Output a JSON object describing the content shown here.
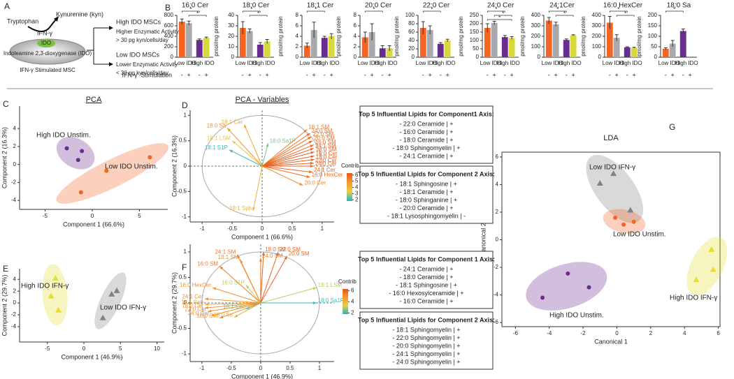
{
  "panel_letters": [
    "A",
    "B",
    "C",
    "D",
    "E",
    "F",
    "G"
  ],
  "diagram": {
    "substrate": "Tryptophan",
    "product": "Kynurenine (kyn)",
    "stimulus": "IFN-γ",
    "enzyme": "IDO",
    "enzyme_full": "Indoleamine 2,3-dioxygenase (IDO)",
    "cell": "IFN-γ Stimulated MSC",
    "groups": [
      {
        "name": "High IDO MSCs",
        "activity": "Higher Enzymatic Activity",
        "threshold": "> 30 pg kyn/cells/day"
      },
      {
        "name": "Low IDO MSCs",
        "activity": "Lower Enzymatic Activity",
        "threshold": "< 30 pg kyn/cells/day"
      }
    ]
  },
  "bar_axis": {
    "groups": [
      "Low IDO",
      "High IDO"
    ],
    "stimulation_label": "IFN-γ  Stimulation",
    "signs": [
      "-",
      "+",
      "-",
      "+"
    ]
  },
  "chart_data": [
    {
      "type": "bar",
      "title": "16:0 Cer",
      "values": [
        680,
        650,
        330,
        370
      ],
      "errors": [
        50,
        40,
        20,
        15
      ],
      "colors": [
        "#f26522",
        "#a7a9ac",
        "#6a2c91",
        "#d7d93a"
      ],
      "ylim": [
        0,
        800
      ],
      "yticks": [
        0,
        200,
        400,
        600,
        800
      ],
      "significance": [
        "*",
        "*"
      ]
    },
    {
      "type": "bar",
      "title": "18:0 Cer",
      "ylabel": "pmol/mg protein",
      "values": [
        28,
        25,
        12,
        15
      ],
      "errors": [
        6,
        2,
        2,
        2
      ],
      "colors": [
        "#f26522",
        "#a7a9ac",
        "#6a2c91",
        "#d7d93a"
      ],
      "ylim": [
        0,
        40
      ],
      "yticks": [
        0,
        10,
        20,
        30,
        40
      ],
      "significance": [
        "*",
        "*"
      ]
    },
    {
      "type": "bar",
      "title": "18:1 Cer",
      "ylabel": "pmol/mg protein",
      "values": [
        2.2,
        5.2,
        3.7,
        4.0
      ],
      "errors": [
        0.5,
        1.5,
        0.3,
        0.5
      ],
      "colors": [
        "#f26522",
        "#a7a9ac",
        "#6a2c91",
        "#d7d93a"
      ],
      "ylim": [
        0,
        8
      ],
      "yticks": [
        0,
        2,
        4,
        6,
        8
      ],
      "significance": [
        "*"
      ]
    },
    {
      "type": "bar",
      "title": "20:0 Cer",
      "ylabel": "pmol/mg protein",
      "values": [
        3.8,
        4.8,
        1.7,
        1.7
      ],
      "errors": [
        1.0,
        1.6,
        0.5,
        0.5
      ],
      "colors": [
        "#f26522",
        "#a7a9ac",
        "#6a2c91",
        "#d7d93a"
      ],
      "ylim": [
        0,
        8
      ],
      "yticks": [
        0,
        2,
        4,
        6,
        8
      ],
      "significance": [
        "*"
      ]
    },
    {
      "type": "bar",
      "title": "22:0 Cer",
      "ylabel": "pmol/mg protein",
      "values": [
        70,
        65,
        32,
        40
      ],
      "errors": [
        15,
        10,
        3,
        3
      ],
      "colors": [
        "#f26522",
        "#a7a9ac",
        "#6a2c91",
        "#d7d93a"
      ],
      "ylim": [
        0,
        100
      ],
      "yticks": [
        0,
        20,
        40,
        60,
        80,
        100
      ],
      "significance": [
        "*"
      ]
    },
    {
      "type": "bar",
      "title": "24:0 Cer",
      "ylabel": "pmol/mg protein",
      "values": [
        175,
        205,
        120,
        115
      ],
      "errors": [
        25,
        10,
        10,
        8
      ],
      "colors": [
        "#f26522",
        "#a7a9ac",
        "#6a2c91",
        "#d7d93a"
      ],
      "ylim": [
        0,
        250
      ],
      "yticks": [
        0,
        50,
        100,
        150,
        200,
        250
      ],
      "significance": [
        "*",
        "*",
        "*"
      ]
    },
    {
      "type": "bar",
      "title": "24:1Cer",
      "ylabel": "pmol/mg protein",
      "values": [
        350,
        315,
        165,
        210
      ],
      "errors": [
        30,
        20,
        10,
        5
      ],
      "colors": [
        "#f26522",
        "#a7a9ac",
        "#6a2c91",
        "#d7d93a"
      ],
      "ylim": [
        0,
        400
      ],
      "yticks": [
        0,
        100,
        200,
        300,
        400
      ],
      "significance": [
        "*",
        "*"
      ]
    },
    {
      "type": "bar",
      "title": "16:0 HexCer",
      "ylabel": "pmol/mg protein",
      "values": [
        330,
        185,
        95,
        90
      ],
      "errors": [
        60,
        30,
        5,
        5
      ],
      "colors": [
        "#f26522",
        "#a7a9ac",
        "#6a2c91",
        "#d7d93a"
      ],
      "ylim": [
        0,
        400
      ],
      "yticks": [
        0,
        100,
        200,
        300,
        400
      ],
      "significance": [
        "*",
        "*"
      ]
    },
    {
      "type": "bar",
      "title": "18:0 Sa",
      "ylabel": "pmol/mg protein",
      "values": [
        40,
        65,
        125,
        null
      ],
      "errors": [
        5,
        15,
        10,
        null
      ],
      "colors": [
        "#f26522",
        "#a7a9ac",
        "#6a2c91",
        "#d7d93a"
      ],
      "ylim": [
        0,
        200
      ],
      "yticks": [
        0,
        50,
        100,
        150,
        200
      ],
      "significance": [
        "*"
      ]
    },
    {
      "type": "scatter",
      "title": "PCA",
      "xlabel": "Component 1 (66.6%)",
      "ylabel": "Component 2 (16.3%)",
      "xlim": [
        -7.7,
        8
      ],
      "ylim": [
        -5,
        6.5
      ],
      "xticks": [
        -5,
        0,
        5
      ],
      "yticks": [
        -4,
        -2,
        0,
        2,
        4
      ],
      "series": [
        {
          "name": "High IDO Unstim.",
          "color": "#6a2c91",
          "marker": "circle",
          "x": [
            -2.7,
            -1.1,
            -1.5
          ],
          "y": [
            1.8,
            1.5,
            0.5
          ]
        },
        {
          "name": "Low IDO Unstim.",
          "color": "#f26522",
          "marker": "circle",
          "x": [
            6.1,
            1.5,
            -1.2
          ],
          "y": [
            0.8,
            -0.7,
            -3.1
          ]
        }
      ]
    },
    {
      "type": "biplot",
      "title": "PCA - Variables",
      "xlabel": "Component 1 (66.6%)",
      "ylabel": "Component 2 (16.3%)",
      "xlim": [
        -1.2,
        1.2
      ],
      "ylim": [
        -1.1,
        1.1
      ],
      "xticks": [
        -1,
        -0.5,
        0,
        0.5,
        1
      ],
      "yticks": [
        -1,
        -0.5,
        0,
        0.5,
        1
      ],
      "variables": [
        "18:1 Cer",
        "18:0 Sa",
        "18:1 LSM",
        "18:1 S1P",
        "18:0 Sa1P",
        "18:1 Sph",
        "18:1 SM",
        "24:0 SM",
        "22:0 SM",
        "20:0 SM",
        "16:0 SM",
        "24:1 SM",
        "18:0 SM",
        "16:0 Cer",
        "18:0 Cer",
        "22:0 Cer",
        "24:0 Cer",
        "24:1 Cer",
        "16:0 HexCer",
        "20:0 Cer"
      ],
      "x": [
        -0.3,
        -0.58,
        -0.5,
        -0.55,
        0.1,
        -0.15,
        0.75,
        0.8,
        0.82,
        0.84,
        0.86,
        0.86,
        0.87,
        0.87,
        0.87,
        0.86,
        0.86,
        0.84,
        0.8,
        0.68
      ],
      "y": [
        0.82,
        0.75,
        0.5,
        0.32,
        0.45,
        -0.88,
        0.72,
        0.65,
        0.58,
        0.5,
        0.42,
        0.35,
        0.28,
        0.2,
        0.13,
        0.06,
        0.0,
        -0.12,
        -0.22,
        -0.38
      ],
      "contrib": [
        4.5,
        5,
        3.5,
        2,
        2.5,
        4,
        5.5,
        5.8,
        5.8,
        5.9,
        6,
        6,
        6,
        6,
        6,
        6,
        6,
        5.9,
        5.7,
        5.2
      ],
      "colorbar": {
        "label": "Contrib",
        "lim": [
          1.8,
          6.3
        ],
        "ticks": [
          2,
          3,
          4,
          5,
          6
        ],
        "colors": [
          "#1fb5c9",
          "#e6d043",
          "#f39a2d",
          "#e8561f"
        ]
      }
    },
    {
      "type": "scatter",
      "xlabel": "Component 1 (46.9%)",
      "ylabel": "Component 2 (29.7%)",
      "xlim": [
        -8.8,
        11
      ],
      "ylim": [
        -6.6,
        5.8
      ],
      "xticks": [
        -5,
        0,
        5,
        10
      ],
      "yticks": [
        -4,
        -2,
        0,
        2,
        4
      ],
      "series": [
        {
          "name": "High IDO IFN-γ",
          "color": "#e6df2a",
          "marker": "triangle",
          "x": [
            -3.9,
            -4.5,
            -3.5
          ],
          "y": [
            4.2,
            1.2,
            -1.2
          ]
        },
        {
          "name": "Low IDO IFN-γ",
          "color": "#808285",
          "marker": "triangle",
          "x": [
            4.5,
            3.8,
            2.6
          ],
          "y": [
            2.1,
            1.5,
            -2.5
          ]
        }
      ]
    },
    {
      "type": "biplot",
      "xlabel": "Component 1 (46.9%)",
      "ylabel": "Component 2 (29.7%)",
      "xlim": [
        -1.2,
        1.25
      ],
      "ylim": [
        -1.15,
        1.15
      ],
      "xticks": [
        -1,
        -0.5,
        0,
        0.5,
        1
      ],
      "yticks": [
        -1,
        -0.5,
        0,
        0.5,
        1
      ],
      "variables": [
        "18:0 SM",
        "22:0 SM",
        "20:0 SM",
        "24:1 SM",
        "24:0 SM",
        "18:1 SM",
        "16:0 SM",
        "16:0 HexCer",
        "16:0 S1P",
        "18:1 LSM",
        "24:1 Cer",
        "18:1 Sph",
        "18:0 Cer",
        "22:0 Cer",
        "24:0 Cer",
        "16:0 Cer",
        "18:0 Sa",
        "18:1 Cer",
        "18:0 Sa1P"
      ],
      "x": [
        0.05,
        0.3,
        0.45,
        -0.4,
        0.0,
        -0.35,
        -0.7,
        -0.82,
        -0.25,
        0.95,
        -0.95,
        -0.95,
        -0.95,
        -0.9,
        -0.85,
        -0.7,
        -0.45,
        -0.25,
        0.95
      ],
      "y": [
        1.0,
        1.0,
        0.92,
        0.95,
        0.88,
        0.85,
        0.72,
        0.3,
        0.35,
        0.3,
        0.08,
        -0.03,
        -0.1,
        -0.17,
        -0.25,
        -0.3,
        -0.28,
        -0.12,
        0.0
      ],
      "contrib": [
        6,
        6,
        6,
        5.5,
        5.5,
        5,
        5.5,
        5,
        3,
        3,
        5,
        4.5,
        5,
        5,
        5,
        5,
        4.5,
        2.5,
        2
      ],
      "colorbar": {
        "label": "Contrib",
        "lim": [
          1.8,
          6.3
        ],
        "ticks": [
          2,
          4,
          6
        ],
        "colors": [
          "#1fb5c9",
          "#e6d043",
          "#f39a2d",
          "#e8561f"
        ]
      }
    },
    {
      "type": "scatter",
      "title": "LDA",
      "xlabel": "Canonical 1",
      "ylabel": "Canonical 2",
      "xlim": [
        -6.8,
        6.1
      ],
      "ylim": [
        -6.3,
        6.35
      ],
      "xticks": [
        -6,
        -4,
        -2,
        0,
        2,
        4,
        6
      ],
      "yticks": [
        -6,
        -4,
        -2,
        0,
        2,
        4,
        6
      ],
      "series": [
        {
          "name": "Low IDO IFN-γ",
          "color": "#808285",
          "marker": "triangle",
          "x": [
            -1.0,
            -0.2,
            0.8
          ],
          "y": [
            4.1,
            4.8,
            2.15
          ]
        },
        {
          "name": "Low IDO Unstim.",
          "color": "#f26522",
          "marker": "circle",
          "x": [
            -0.1,
            1.0,
            0.4
          ],
          "y": [
            1.6,
            1.3,
            1.1
          ]
        },
        {
          "name": "High IDO Unstim.",
          "color": "#6a2c91",
          "marker": "circle",
          "x": [
            -4.4,
            -2.9,
            -1.65
          ],
          "y": [
            -4.2,
            -2.45,
            -3.45
          ]
        },
        {
          "name": "High IDO IFN-γ",
          "color": "#e6df2a",
          "marker": "triangle",
          "x": [
            5.6,
            5.7,
            4.7
          ],
          "y": [
            -0.7,
            -2.15,
            -2.9
          ]
        }
      ]
    }
  ],
  "boxes": [
    {
      "title": "Top 5 Influential Lipids for Component1 Axis:",
      "items": [
        "- 22:0 Ceramide | +",
        "- 16:0 Ceramide | +",
        "- 18:0 Ceramide | +",
        "- 18:0 Sphingomyelin | +",
        "- 24:1 Ceramide | +"
      ]
    },
    {
      "title": "Top 5 Influential Lipids for Component 2 Axis:",
      "items": [
        "- 18:1 Sphingosine | +",
        "- 18:1 Ceramide | +",
        "- 18:0 Sphinganine | +",
        "- 20:0 Ceramide | +",
        "- 18:1 Lysosphingomyelin | -"
      ]
    },
    {
      "title": "Top 5 Influential Lipids for Component 1 Axis:",
      "items": [
        "- 24:1 Ceramide | +",
        "- 18:0 Ceramide | +",
        "- 18:1 Sphingosine | +",
        "- 16:0 Hexosylceramide | +",
        "- 16:0 Ceramide | +"
      ]
    },
    {
      "title": "Top 5 Influential Lipids for Component 2 Axis:",
      "items": [
        "- 18:1 Sphingomyelin | +",
        "- 22:0 Sphingomyelin | +",
        "- 20:0 Sphingomyelin | +",
        "- 24:1 Sphingomyelin | +",
        "- 24:0 Sphingomyelin | +"
      ]
    }
  ]
}
